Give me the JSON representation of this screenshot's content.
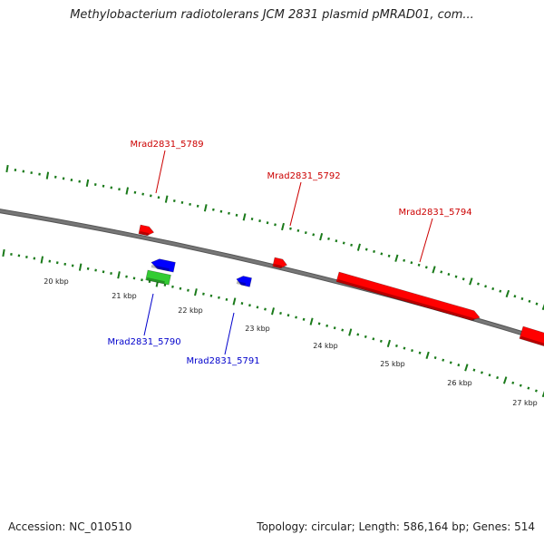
{
  "title": "Methylobacterium radiotolerans JCM 2831 plasmid pMRAD01, com...",
  "footer": {
    "accession": "Accession: NC_010510",
    "summary": "Topology: circular; Length: 586,164 bp; Genes: 514"
  },
  "colors": {
    "forward_gene": "#ff0000",
    "reverse_gene": "#0000ff",
    "rna_gene": "#33cc33",
    "backbone": "#777777",
    "ticks": "#1a7a1a",
    "forward_label": "#cc0000",
    "reverse_label": "#0000cc"
  },
  "ruler_labels": [
    {
      "text": "20 kbp",
      "kb": 20
    },
    {
      "text": "21 kbp",
      "kb": 21
    },
    {
      "text": "22 kbp",
      "kb": 22
    },
    {
      "text": "23 kbp",
      "kb": 23
    },
    {
      "text": "24 kbp",
      "kb": 24
    },
    {
      "text": "25 kbp",
      "kb": 25
    },
    {
      "text": "26 kbp",
      "kb": 26
    },
    {
      "text": "27 kbp",
      "kb": 27
    }
  ],
  "genes": [
    {
      "name": "Mrad2831_5789",
      "strand": "forward",
      "labeled": true
    },
    {
      "name": "Mrad2831_5790",
      "strand": "reverse",
      "labeled": true
    },
    {
      "name": "Mrad2831_5791",
      "strand": "reverse",
      "labeled": true
    },
    {
      "name": "Mrad2831_5792",
      "strand": "forward",
      "labeled": true
    },
    {
      "name": "Mrad2831_5794",
      "strand": "forward",
      "labeled": true
    },
    {
      "name": "",
      "strand": "rna",
      "labeled": false
    },
    {
      "name": "",
      "strand": "forward",
      "labeled": false
    }
  ]
}
